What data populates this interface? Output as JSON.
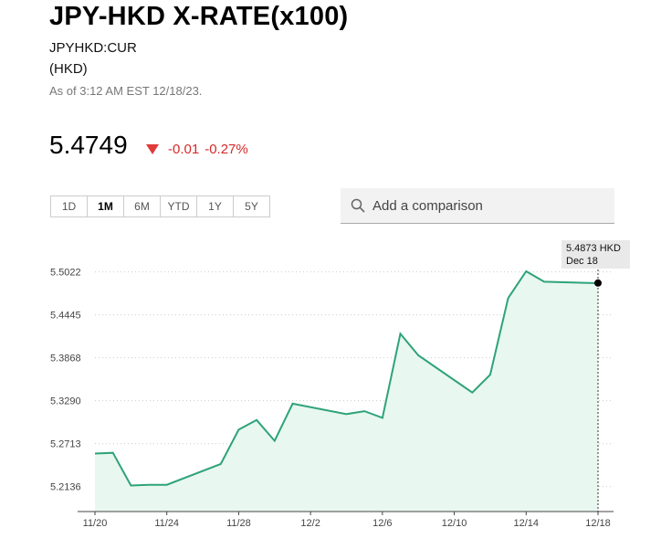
{
  "header": {
    "title": "JPY-HKD X-RATE(x100)",
    "ticker": "JPYHKD:CUR",
    "currency": "(HKD)",
    "as_of": "As of 3:12 AM EST 12/18/23."
  },
  "quote": {
    "price": "5.4749",
    "change": "-0.01",
    "change_pct": "-0.27%",
    "direction": "down",
    "down_color": "#d62a2a"
  },
  "ranges": [
    {
      "label": "1D",
      "active": false
    },
    {
      "label": "1M",
      "active": true
    },
    {
      "label": "6M",
      "active": false
    },
    {
      "label": "YTD",
      "active": false
    },
    {
      "label": "1Y",
      "active": false
    },
    {
      "label": "5Y",
      "active": false
    }
  ],
  "compare": {
    "placeholder": "Add a comparison",
    "icon": "search-icon"
  },
  "tooltip": {
    "value": "5.4873 HKD",
    "date": "Dec 18"
  },
  "chart_data": {
    "type": "area",
    "title": "",
    "xlabel": "",
    "ylabel": "",
    "line_color": "#2ea37a",
    "fill_color": "#e8f7f0",
    "grid": "horizontal-dotted",
    "x_ticks": [
      "11/20",
      "11/24",
      "11/28",
      "12/2",
      "12/6",
      "12/10",
      "12/14",
      "12/18"
    ],
    "y_ticks": [
      "5.2136",
      "5.2713",
      "5.3290",
      "5.3868",
      "5.4445",
      "5.5022"
    ],
    "ylim": [
      5.18,
      5.53
    ],
    "x_start": "2023-11-20",
    "series": [
      {
        "points": [
          [
            "2023-11-20",
            5.258
          ],
          [
            "2023-11-21",
            5.259
          ],
          [
            "2023-11-22",
            5.215
          ],
          [
            "2023-11-23",
            5.216
          ],
          [
            "2023-11-24",
            5.216
          ],
          [
            "2023-11-27",
            5.244
          ],
          [
            "2023-11-28",
            5.29
          ],
          [
            "2023-11-29",
            5.303
          ],
          [
            "2023-11-30",
            5.275
          ],
          [
            "2023-12-01",
            5.325
          ],
          [
            "2023-12-04",
            5.311
          ],
          [
            "2023-12-05",
            5.315
          ],
          [
            "2023-12-06",
            5.306
          ],
          [
            "2023-12-07",
            5.419
          ],
          [
            "2023-12-08",
            5.39
          ],
          [
            "2023-12-11",
            5.34
          ],
          [
            "2023-12-12",
            5.364
          ],
          [
            "2023-12-13",
            5.467
          ],
          [
            "2023-12-14",
            5.503
          ],
          [
            "2023-12-15",
            5.489
          ],
          [
            "2023-12-18",
            5.487
          ]
        ]
      }
    ],
    "highlight": {
      "date": "2023-12-18",
      "value": 5.4873
    }
  }
}
